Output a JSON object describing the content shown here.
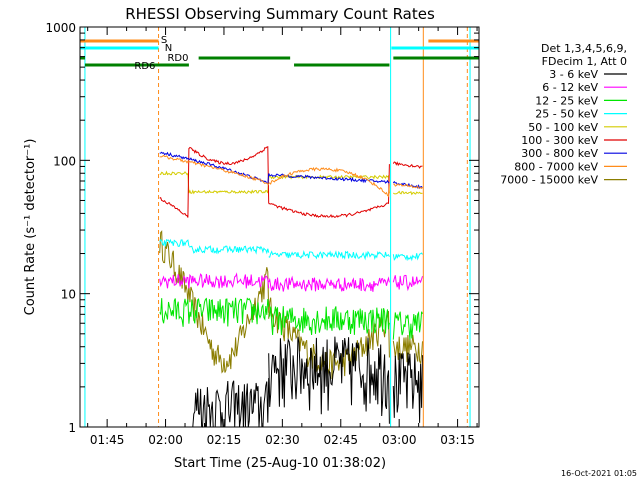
{
  "chart_data": {
    "type": "line",
    "title": "RHESSI Observing Summary Count Rates",
    "xlabel": "Start Time (25-Aug-10 01:38:02)",
    "ylabel": "Count Rate (s⁻¹ detector⁻¹)",
    "y_scale": "log",
    "ylim": [
      1,
      1000
    ],
    "y_ticks": [
      {
        "value": 1,
        "label": "1"
      },
      {
        "value": 10,
        "label": "10"
      },
      {
        "value": 100,
        "label": "100"
      },
      {
        "value": 1000,
        "label": "1000"
      }
    ],
    "x_ticks": [
      "01:45",
      "02:00",
      "02:15",
      "02:30",
      "02:45",
      "03:00",
      "03:15"
    ],
    "x_tick_minutes": [
      105,
      120,
      135,
      150,
      165,
      180,
      195
    ],
    "x_range_minutes": [
      98.03,
      200.5
    ],
    "grid": false,
    "legend_position": "right",
    "legend_header": [
      "Det 1,3,4,5,6,9,",
      "FDecim 1, Att 0"
    ],
    "series": [
      {
        "name": "3 - 6 keV",
        "color": "#000000"
      },
      {
        "name": "6 - 12 keV",
        "color": "#ff00ff"
      },
      {
        "name": "12 - 25 keV",
        "color": "#00e600"
      },
      {
        "name": "25 - 50 keV",
        "color": "#00ffff"
      },
      {
        "name": "50 - 100 keV",
        "color": "#d4cc00"
      },
      {
        "name": "100 - 300 keV",
        "color": "#e00000"
      },
      {
        "name": "300 - 800 keV",
        "color": "#0000e0"
      },
      {
        "name": "800 - 7000 keV",
        "color": "#ff8c1a"
      },
      {
        "name": "7000 - 15000 keV",
        "color": "#8b7d00"
      }
    ],
    "flag_labels": [
      "S",
      "N",
      "RD0",
      "RD6"
    ],
    "footer": "16-Oct-2021 01:05"
  }
}
